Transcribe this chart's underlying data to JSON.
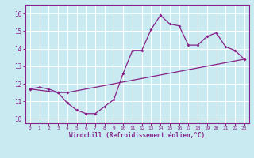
{
  "xlabel": "Windchill (Refroidissement éolien,°C)",
  "bg_color": "#c8eaf0",
  "line_color": "#882288",
  "grid_color": "#ffffff",
  "spine_color": "#882288",
  "xlim": [
    -0.5,
    23.5
  ],
  "ylim": [
    9.75,
    16.5
  ],
  "yticks": [
    10,
    11,
    12,
    13,
    14,
    15,
    16
  ],
  "xticks": [
    0,
    1,
    2,
    3,
    4,
    5,
    6,
    7,
    8,
    9,
    10,
    11,
    12,
    13,
    14,
    15,
    16,
    17,
    18,
    19,
    20,
    21,
    22,
    23
  ],
  "curve1_x": [
    0,
    1,
    2,
    3,
    4,
    5,
    6,
    7,
    8,
    9,
    10,
    11,
    12,
    13,
    14,
    15,
    16,
    17,
    18,
    19,
    20,
    21,
    22,
    23
  ],
  "curve1_y": [
    11.7,
    11.8,
    11.7,
    11.5,
    10.9,
    10.5,
    10.3,
    10.3,
    10.7,
    11.1,
    12.6,
    13.9,
    13.9,
    15.1,
    15.9,
    15.4,
    15.3,
    14.2,
    14.2,
    14.7,
    14.9,
    14.1,
    13.9,
    13.4
  ],
  "curve2_x": [
    0,
    3,
    4,
    23
  ],
  "curve2_y": [
    11.7,
    11.5,
    11.5,
    13.4
  ],
  "ytick_labels": [
    "10",
    "11",
    "12",
    "13",
    "14",
    "15",
    "16"
  ],
  "xtick_labels": [
    "0",
    "1",
    "2",
    "3",
    "4",
    "5",
    "6",
    "7",
    "8",
    "9",
    "10",
    "11",
    "12",
    "13",
    "14",
    "15",
    "16",
    "17",
    "18",
    "19",
    "20",
    "21",
    "22",
    "23"
  ]
}
